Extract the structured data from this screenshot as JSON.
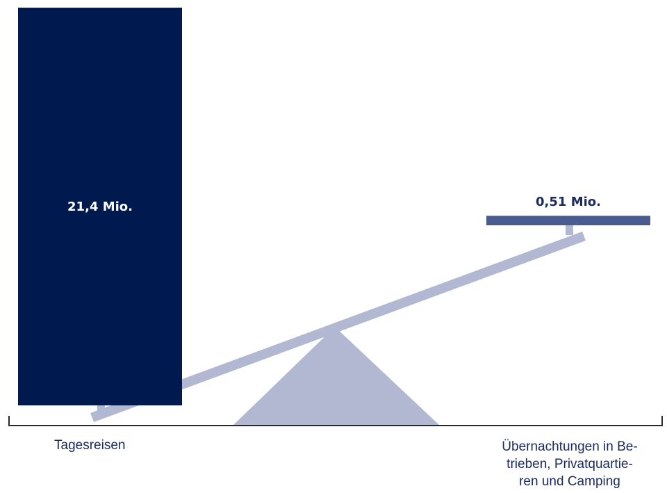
{
  "chart_data": {
    "type": "bar",
    "categories": [
      "Tagesreisen",
      "Übernachtungen in Be-trieben, Privatquartie-ren und Camping"
    ],
    "series": [
      {
        "values": [
          21.4,
          0.51
        ]
      }
    ],
    "value_labels": [
      "21,4 Mio.",
      "0,51 Mio."
    ],
    "category_label_lines": {
      "left": [
        "Tagesreisen"
      ],
      "right": [
        "Übernachtungen in Be-",
        "trieben, Privatquartie-",
        "ren und Camping"
      ]
    },
    "colors": {
      "left_bar": "#001a4f",
      "right_bar": "#4a5b8f",
      "seesaw": "#b2b8d2",
      "axis": "#2a2a2a",
      "text": "#1b2a5c"
    }
  }
}
